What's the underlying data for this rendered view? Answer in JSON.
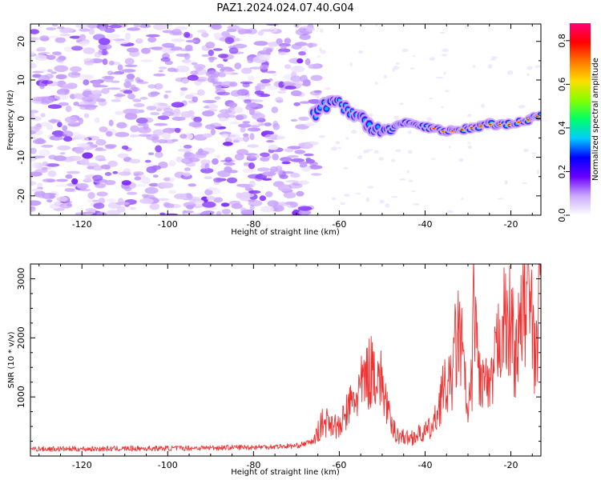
{
  "title": "PAZ1.2024.024.07.40.G04",
  "chart_data": [
    {
      "type": "heatmap",
      "xlabel": "Height of straight line (km)",
      "ylabel": "Frequency (Hz)",
      "xlim": [
        -132,
        -13
      ],
      "ylim": [
        -25,
        24.5
      ],
      "xticks": [
        -120,
        -100,
        -80,
        -60,
        -40,
        -20
      ],
      "yticks": [
        -20,
        -10,
        0,
        10,
        20
      ],
      "ridge": {
        "x": [
          -65,
          -60,
          -55,
          -50,
          -45,
          -40,
          -35,
          -30,
          -25,
          -20,
          -15,
          -13
        ],
        "freq": [
          3,
          4,
          0,
          -4,
          -1,
          -2,
          -3.5,
          -2.5,
          -1.5,
          -1.5,
          0,
          1
        ]
      },
      "colorbar": {
        "label": "Normalized spectral amplitude",
        "range": [
          0,
          0.88
        ],
        "ticks": [
          0.0,
          0.2,
          0.4,
          0.6,
          0.8
        ],
        "tick_labels": [
          "0.0",
          "0.2",
          "0.4",
          "0.6",
          "0.8"
        ],
        "colors": [
          "#ffffff",
          "#ccaaff",
          "#6a00ff",
          "#0000ff",
          "#00ccff",
          "#00ff66",
          "#88ff00",
          "#ffdd00",
          "#ff7700",
          "#ff0000",
          "#ff0077"
        ]
      }
    },
    {
      "type": "line",
      "xlabel": "Height of straight line (km)",
      "ylabel": "SNR (10 * v/v)",
      "xlim": [
        -132,
        -13
      ],
      "ylim": [
        0,
        3250
      ],
      "xticks": [
        -120,
        -100,
        -80,
        -60,
        -40,
        -20
      ],
      "yticks": [
        1000,
        2000,
        3000
      ],
      "series": [
        {
          "color": "#ee3333",
          "x": [
            -132,
            -120,
            -100,
            -80,
            -70,
            -66,
            -64,
            -62,
            -60,
            -58,
            -56,
            -54,
            -52,
            -51,
            -50,
            -49,
            -48,
            -46,
            -44,
            -42,
            -40,
            -38,
            -37,
            -36,
            -34,
            -33,
            -32,
            -31,
            -30,
            -29,
            -28.5,
            -28,
            -27,
            -26,
            -25,
            -24,
            -23,
            -22,
            -21,
            -20,
            -19,
            -18,
            -17,
            -16,
            -15,
            -14.5,
            -14,
            -13.5,
            -13
          ],
          "y": [
            120,
            120,
            130,
            150,
            170,
            250,
            550,
            600,
            450,
            800,
            1000,
            1300,
            1500,
            1400,
            1200,
            900,
            500,
            350,
            300,
            350,
            400,
            500,
            800,
            1100,
            1200,
            1800,
            2100,
            1500,
            600,
            1400,
            3000,
            1800,
            1200,
            1300,
            1000,
            1400,
            1900,
            2400,
            2100,
            2300,
            1700,
            2000,
            2600,
            2800,
            2200,
            1500,
            1900,
            2700,
            3200
          ]
        }
      ]
    }
  ]
}
